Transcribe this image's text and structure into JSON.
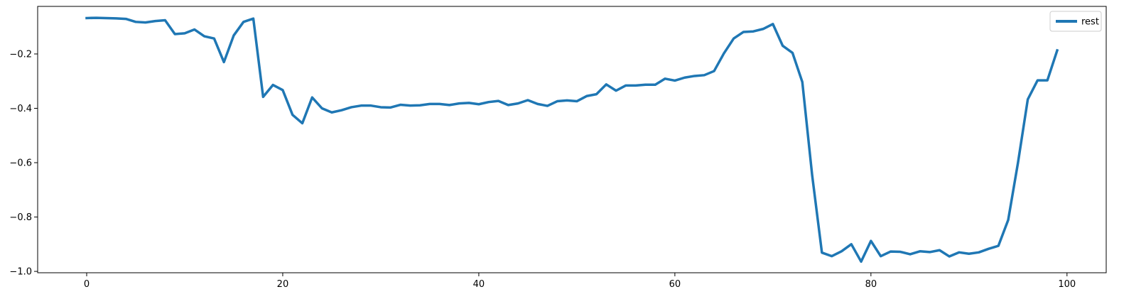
{
  "chart_data": {
    "type": "line",
    "title": "",
    "xlabel": "",
    "ylabel": "",
    "xlim": [
      -5,
      104
    ],
    "ylim": [
      -1.005,
      -0.025
    ],
    "xticks": [
      0,
      20,
      40,
      60,
      80,
      100
    ],
    "xtick_labels": [
      "0",
      "20",
      "40",
      "60",
      "80",
      "100"
    ],
    "yticks": [
      -1.0,
      -0.8,
      -0.6,
      -0.4,
      -0.2
    ],
    "ytick_labels": [
      "−1.0",
      "−0.8",
      "−0.6",
      "−0.4",
      "−0.2"
    ],
    "grid": false,
    "legend_position": "top-right",
    "series": [
      {
        "name": "rest",
        "color": "#1f77b4",
        "x": [
          0,
          1,
          2,
          3,
          4,
          5,
          6,
          7,
          8,
          9,
          10,
          11,
          12,
          13,
          14,
          15,
          16,
          17,
          18,
          19,
          20,
          21,
          22,
          23,
          24,
          25,
          26,
          27,
          28,
          29,
          30,
          31,
          32,
          33,
          34,
          35,
          36,
          37,
          38,
          39,
          40,
          41,
          42,
          43,
          44,
          45,
          46,
          47,
          48,
          49,
          50,
          51,
          52,
          53,
          54,
          55,
          56,
          57,
          58,
          59,
          60,
          61,
          62,
          63,
          64,
          65,
          66,
          67,
          68,
          69,
          70,
          71,
          72,
          73,
          74,
          75,
          76,
          77,
          78,
          79,
          80,
          81,
          82,
          83,
          84,
          85,
          86,
          87,
          88,
          89,
          90,
          91,
          92,
          93,
          94,
          95,
          96,
          97,
          98,
          99
        ],
        "y": [
          -0.068,
          -0.067,
          -0.068,
          -0.069,
          -0.071,
          -0.082,
          -0.084,
          -0.079,
          -0.076,
          -0.127,
          -0.124,
          -0.11,
          -0.135,
          -0.143,
          -0.23,
          -0.132,
          -0.082,
          -0.07,
          -0.358,
          -0.314,
          -0.333,
          -0.424,
          -0.455,
          -0.36,
          -0.4,
          -0.415,
          -0.407,
          -0.396,
          -0.39,
          -0.39,
          -0.396,
          -0.397,
          -0.387,
          -0.39,
          -0.389,
          -0.384,
          -0.384,
          -0.388,
          -0.382,
          -0.38,
          -0.385,
          -0.377,
          -0.373,
          -0.388,
          -0.382,
          -0.37,
          -0.384,
          -0.391,
          -0.374,
          -0.371,
          -0.374,
          -0.355,
          -0.348,
          -0.312,
          -0.335,
          -0.316,
          -0.316,
          -0.313,
          -0.313,
          -0.291,
          -0.298,
          -0.287,
          -0.281,
          -0.278,
          -0.263,
          -0.198,
          -0.143,
          -0.119,
          -0.117,
          -0.108,
          -0.09,
          -0.17,
          -0.196,
          -0.303,
          -0.645,
          -0.931,
          -0.944,
          -0.926,
          -0.9,
          -0.964,
          -0.888,
          -0.944,
          -0.927,
          -0.928,
          -0.937,
          -0.926,
          -0.929,
          -0.922,
          -0.945,
          -0.93,
          -0.935,
          -0.93,
          -0.917,
          -0.906,
          -0.811,
          -0.6,
          -0.367,
          -0.297,
          -0.297,
          -0.187
        ]
      }
    ]
  }
}
